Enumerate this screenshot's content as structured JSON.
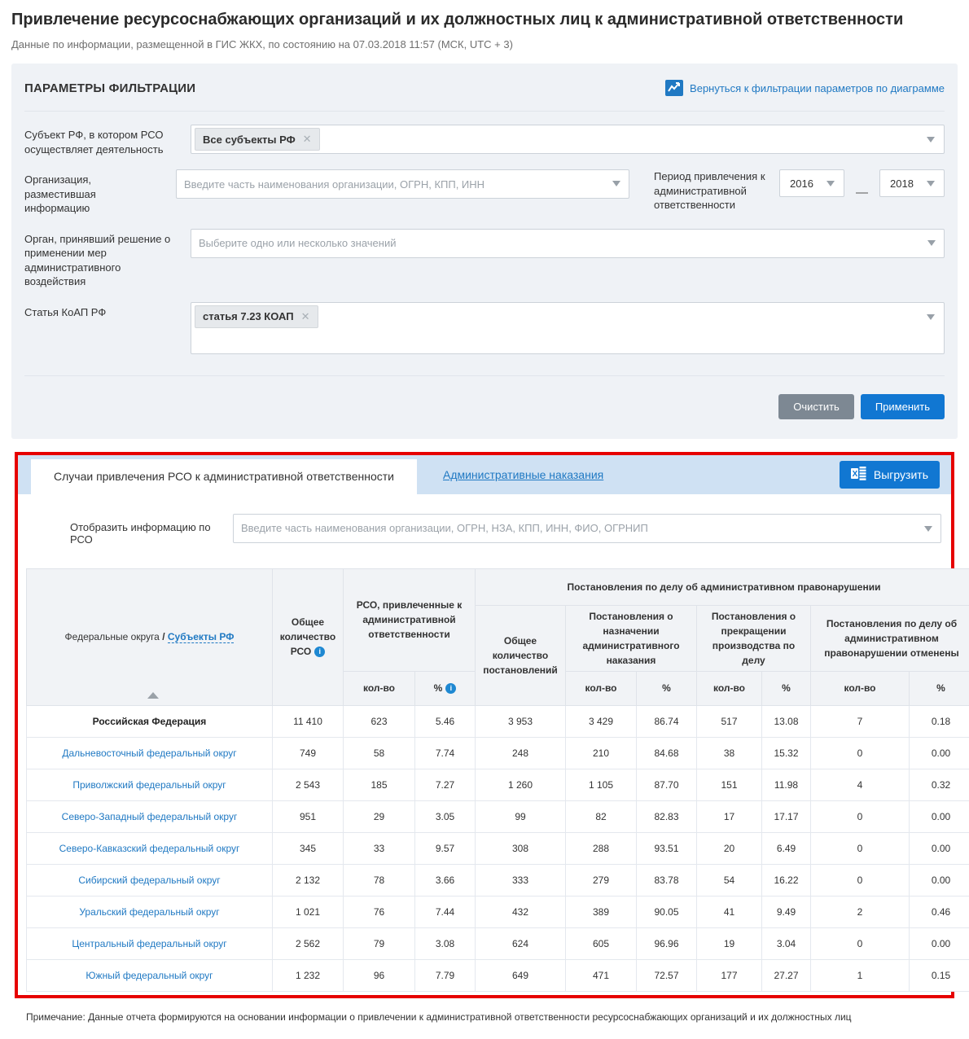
{
  "page": {
    "title": "Привлечение ресурсоснабжающих организаций и их должностных лиц к административной ответственности",
    "subtitle": "Данные по информации, размещенной в ГИС ЖКХ, по состоянию на 07.03.2018 11:57 (МСК, UTC + 3)",
    "note": "Примечание: Данные отчета формируются на основании информации о привлечении к административной ответственности ресурсоснабжающих организаций и их должностных лиц"
  },
  "colors": {
    "accent_blue": "#1177d2",
    "link_blue": "#2079c3",
    "annotation_red": "#e60000",
    "tab_strip": "#cfe1f3",
    "panel_bg": "#eff2f6"
  },
  "filters": {
    "panel_title": "ПАРАМЕТРЫ ФИЛЬТРАЦИИ",
    "back_link": "Вернуться к фильтрации параметров по диаграмме",
    "subject_label": "Субъект РФ, в котором РСО осуществляет деятельность",
    "subject_chip": "Все субъекты РФ",
    "chip_close": "✕",
    "org_label": "Организация, разместившая информацию",
    "org_placeholder": "Введите часть наименования организации, ОГРН, КПП, ИНН",
    "period_label": "Период привлечения к административной ответственности",
    "period_from": "2016",
    "period_dash": "—",
    "period_to": "2018",
    "authority_label": "Орган, принявший решение о применении мер административного воздействия",
    "authority_placeholder": "Выберите одно или несколько значений",
    "koap_label": "Статья КоАП РФ",
    "koap_chip": "статья 7.23 КОАП",
    "clear_button": "Очистить",
    "apply_button": "Применить"
  },
  "tabs": {
    "active": "Случаи привлечения РСО к административной ответственности",
    "inactive": "Административные наказания",
    "export_button": "Выгрузить"
  },
  "rso_search": {
    "label": "Отобразить информацию по РСО",
    "placeholder": "Введите часть наименования организации, ОГРН, НЗА, КПП, ИНН, ФИО, ОГРНИП"
  },
  "table": {
    "col_region_1": "Федеральные округа",
    "col_region_sep": " / ",
    "col_region_2": "Субъекты РФ",
    "col_total_rso": "Общее количество РСО",
    "group_rso": "РСО, привлеченные к административной ответственности",
    "group_resolutions": "Постановления по делу об административном правонарушении",
    "col_total_resolutions": "Общее количество постановлений",
    "group_assigned": "Постановления о назначении административного наказания",
    "group_terminated": "Постановления о прекращении производства по делу",
    "group_cancelled": "Постановления по делу об административном правонарушении отменены",
    "sub_count": "кол-во",
    "sub_percent": "%",
    "info_glyph": "i",
    "rows": [
      {
        "name": "Российская Федерация",
        "type": "total",
        "values": [
          "11 410",
          "623",
          "5.46",
          "3 953",
          "3 429",
          "86.74",
          "517",
          "13.08",
          "7",
          "0.18"
        ]
      },
      {
        "name": "Дальневосточный федеральный округ",
        "type": "link",
        "values": [
          "749",
          "58",
          "7.74",
          "248",
          "210",
          "84.68",
          "38",
          "15.32",
          "0",
          "0.00"
        ]
      },
      {
        "name": "Приволжский федеральный округ",
        "type": "link",
        "values": [
          "2 543",
          "185",
          "7.27",
          "1 260",
          "1 105",
          "87.70",
          "151",
          "11.98",
          "4",
          "0.32"
        ]
      },
      {
        "name": "Северо-Западный федеральный округ",
        "type": "link",
        "values": [
          "951",
          "29",
          "3.05",
          "99",
          "82",
          "82.83",
          "17",
          "17.17",
          "0",
          "0.00"
        ]
      },
      {
        "name": "Северо-Кавказский федеральный округ",
        "type": "link",
        "values": [
          "345",
          "33",
          "9.57",
          "308",
          "288",
          "93.51",
          "20",
          "6.49",
          "0",
          "0.00"
        ]
      },
      {
        "name": "Сибирский федеральный округ",
        "type": "link",
        "values": [
          "2 132",
          "78",
          "3.66",
          "333",
          "279",
          "83.78",
          "54",
          "16.22",
          "0",
          "0.00"
        ]
      },
      {
        "name": "Уральский федеральный округ",
        "type": "link",
        "values": [
          "1 021",
          "76",
          "7.44",
          "432",
          "389",
          "90.05",
          "41",
          "9.49",
          "2",
          "0.46"
        ]
      },
      {
        "name": "Центральный федеральный округ",
        "type": "link",
        "values": [
          "2 562",
          "79",
          "3.08",
          "624",
          "605",
          "96.96",
          "19",
          "3.04",
          "0",
          "0.00"
        ]
      },
      {
        "name": "Южный федеральный округ",
        "type": "link",
        "values": [
          "1 232",
          "96",
          "7.79",
          "649",
          "471",
          "72.57",
          "177",
          "27.27",
          "1",
          "0.15"
        ]
      }
    ]
  }
}
